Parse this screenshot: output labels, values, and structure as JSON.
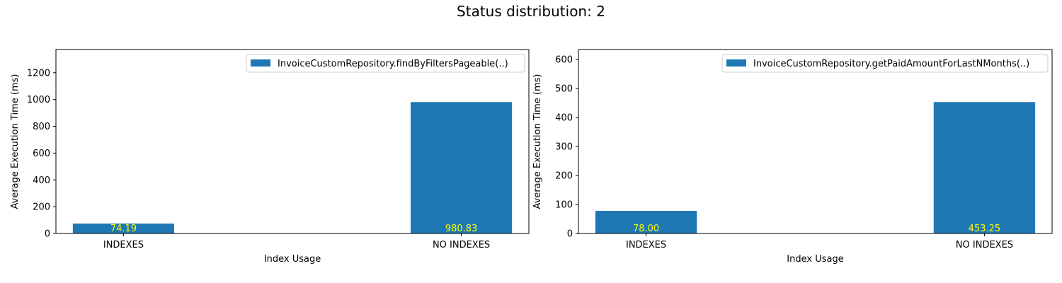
{
  "suptitle": "Status distribution: 2",
  "chart_data": [
    {
      "type": "bar",
      "title": "",
      "xlabel": "Index Usage",
      "ylabel": "Average Execution Time (ms)",
      "categories": [
        "INDEXES",
        "NO INDEXES"
      ],
      "series": [
        {
          "name": "InvoiceCustomRepository.findByFiltersPageable(..)",
          "values": [
            74.19,
            980.83
          ]
        }
      ],
      "value_labels": [
        "74.19",
        "980.83"
      ],
      "ylim": [
        0,
        1373.16
      ],
      "yticks": [
        0,
        200,
        400,
        600,
        800,
        1000,
        1200
      ],
      "grid": false,
      "legend": "top-right",
      "bar_color": "#1f77b4",
      "label_color": "#ffff00"
    },
    {
      "type": "bar",
      "title": "",
      "xlabel": "Index Usage",
      "ylabel": "Average Execution Time (ms)",
      "categories": [
        "INDEXES",
        "NO INDEXES"
      ],
      "series": [
        {
          "name": "InvoiceCustomRepository.getPaidAmountForLastNMonths(..)",
          "values": [
            78.0,
            453.25
          ]
        }
      ],
      "value_labels": [
        "78.00",
        "453.25"
      ],
      "ylim": [
        0,
        634.55
      ],
      "yticks": [
        0,
        100,
        200,
        300,
        400,
        500,
        600
      ],
      "grid": false,
      "legend": "top-right",
      "bar_color": "#1f77b4",
      "label_color": "#ffff00"
    }
  ]
}
